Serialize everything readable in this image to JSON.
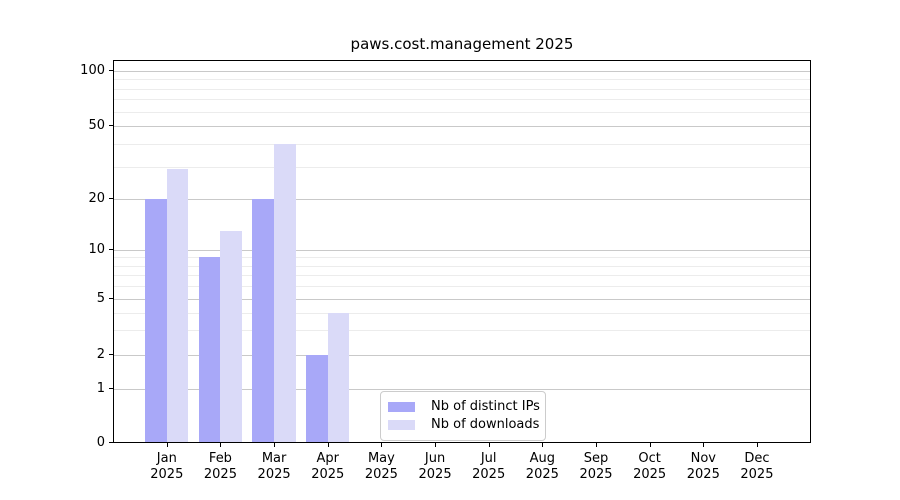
{
  "page": {
    "background": "#ffffff"
  },
  "chart_data": {
    "type": "bar",
    "title": "paws.cost.management 2025",
    "x_axis": {
      "months": [
        "Jan",
        "Feb",
        "Mar",
        "Apr",
        "May",
        "Jun",
        "Jul",
        "Aug",
        "Sep",
        "Oct",
        "Nov",
        "Dec"
      ],
      "year_label": "2025"
    },
    "y_axis": {
      "scale": "log-like",
      "major_ticks": [
        0,
        1,
        2,
        5,
        10,
        20,
        50,
        100
      ],
      "minor_gridlines": [
        3,
        4,
        6,
        7,
        8,
        9,
        30,
        40,
        60,
        70,
        80,
        90
      ],
      "ylim": [
        0,
        115
      ]
    },
    "series": [
      {
        "name": "Nb of distinct IPs",
        "color": "#a8a8f8",
        "values": [
          20,
          9,
          20,
          2,
          0,
          0,
          0,
          0,
          0,
          0,
          0,
          0
        ]
      },
      {
        "name": "Nb of downloads",
        "color": "#dadaf8",
        "values": [
          29,
          13,
          40,
          4,
          0,
          0,
          0,
          0,
          0,
          0,
          0,
          0
        ]
      }
    ],
    "legend": {
      "position": "lower-center-inside"
    },
    "grid": {
      "major_color": "#c9c9c9",
      "minor_color": "#ececec",
      "on": true
    }
  }
}
